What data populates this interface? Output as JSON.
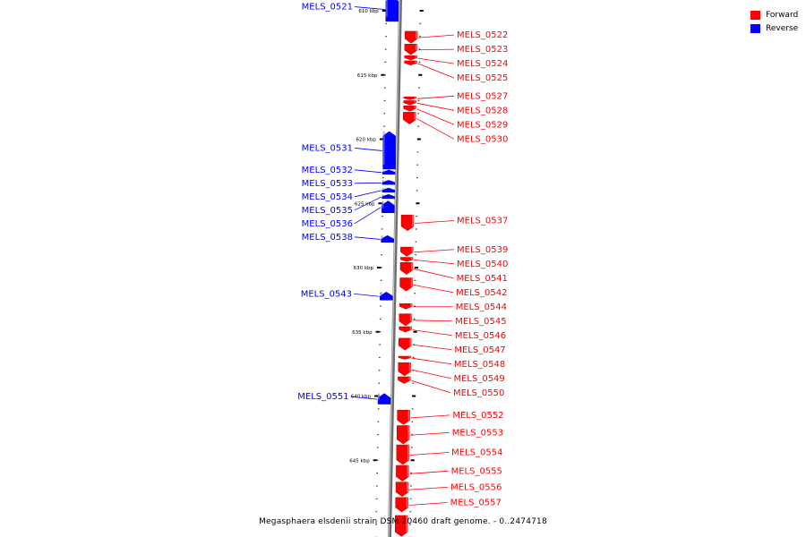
{
  "colors": {
    "forward": "#ff0000",
    "reverse": "#0000ff",
    "backbone": "#888888"
  },
  "legend": [
    {
      "label": "Forward",
      "color": "#ff0000"
    },
    {
      "label": "Reverse",
      "color": "#0000ff"
    }
  ],
  "caption": "Megasphaera elsdenii strain DSM 20460 draft genome. - 0..2474718",
  "ticks": [
    {
      "kbp": 610,
      "label": "610 kbp"
    },
    {
      "kbp": 615,
      "label": "615 kbp"
    },
    {
      "kbp": 620,
      "label": "620 kbp"
    },
    {
      "kbp": 625,
      "label": "625 kbp"
    },
    {
      "kbp": 630,
      "label": "630 kbp"
    },
    {
      "kbp": 635,
      "label": "635 kbp"
    },
    {
      "kbp": 640,
      "label": "640 kbp"
    },
    {
      "kbp": 645,
      "label": "645 kbp"
    }
  ],
  "genes": [
    {
      "name": "MELS_0521",
      "strand": "reverse",
      "start_kbp": 608.9,
      "end_kbp": 610.9
    },
    {
      "name": "MELS_0522",
      "strand": "forward",
      "start_kbp": 611.6,
      "end_kbp": 612.6
    },
    {
      "name": "MELS_0523",
      "strand": "forward",
      "start_kbp": 612.6,
      "end_kbp": 613.5
    },
    {
      "name": "MELS_0524",
      "strand": "forward",
      "start_kbp": 613.5,
      "end_kbp": 613.9
    },
    {
      "name": "MELS_0525",
      "strand": "forward",
      "start_kbp": 613.9,
      "end_kbp": 614.3
    },
    {
      "name": "MELS_0527",
      "strand": "forward",
      "start_kbp": 616.7,
      "end_kbp": 617.0
    },
    {
      "name": "MELS_0528",
      "strand": "forward",
      "start_kbp": 617.0,
      "end_kbp": 617.4
    },
    {
      "name": "MELS_0529",
      "strand": "forward",
      "start_kbp": 617.4,
      "end_kbp": 617.9
    },
    {
      "name": "MELS_0530",
      "strand": "forward",
      "start_kbp": 617.9,
      "end_kbp": 618.9
    },
    {
      "name": "MELS_0531",
      "strand": "reverse",
      "start_kbp": 619.4,
      "end_kbp": 622.4
    },
    {
      "name": "MELS_0532",
      "strand": "reverse",
      "start_kbp": 622.4,
      "end_kbp": 622.8
    },
    {
      "name": "MELS_0533",
      "strand": "reverse",
      "start_kbp": 623.2,
      "end_kbp": 623.6
    },
    {
      "name": "MELS_0534",
      "strand": "reverse",
      "start_kbp": 623.8,
      "end_kbp": 624.2
    },
    {
      "name": "MELS_0535",
      "strand": "reverse",
      "start_kbp": 624.3,
      "end_kbp": 624.7
    },
    {
      "name": "MELS_0536",
      "strand": "reverse",
      "start_kbp": 624.8,
      "end_kbp": 625.8
    },
    {
      "name": "MELS_0537",
      "strand": "forward",
      "start_kbp": 625.9,
      "end_kbp": 627.2
    },
    {
      "name": "MELS_0538",
      "strand": "reverse",
      "start_kbp": 627.5,
      "end_kbp": 628.1
    },
    {
      "name": "MELS_0539",
      "strand": "forward",
      "start_kbp": 628.4,
      "end_kbp": 629.2
    },
    {
      "name": "MELS_0540",
      "strand": "forward",
      "start_kbp": 629.2,
      "end_kbp": 629.6
    },
    {
      "name": "MELS_0541",
      "strand": "forward",
      "start_kbp": 629.6,
      "end_kbp": 630.6
    },
    {
      "name": "MELS_0542",
      "strand": "forward",
      "start_kbp": 630.8,
      "end_kbp": 631.9
    },
    {
      "name": "MELS_0543",
      "strand": "reverse",
      "start_kbp": 631.9,
      "end_kbp": 632.6
    },
    {
      "name": "MELS_0544",
      "strand": "forward",
      "start_kbp": 632.8,
      "end_kbp": 633.3
    },
    {
      "name": "MELS_0545",
      "strand": "forward",
      "start_kbp": 633.6,
      "end_kbp": 634.6
    },
    {
      "name": "MELS_0546",
      "strand": "forward",
      "start_kbp": 634.6,
      "end_kbp": 635.1
    },
    {
      "name": "MELS_0547",
      "strand": "forward",
      "start_kbp": 635.5,
      "end_kbp": 636.5
    },
    {
      "name": "MELS_0548",
      "strand": "forward",
      "start_kbp": 636.9,
      "end_kbp": 637.2
    },
    {
      "name": "MELS_0549",
      "strand": "forward",
      "start_kbp": 637.4,
      "end_kbp": 638.5
    },
    {
      "name": "MELS_0550",
      "strand": "forward",
      "start_kbp": 638.5,
      "end_kbp": 639.1
    },
    {
      "name": "MELS_0551",
      "strand": "reverse",
      "start_kbp": 639.8,
      "end_kbp": 640.7
    },
    {
      "name": "MELS_0552",
      "strand": "forward",
      "start_kbp": 641.1,
      "end_kbp": 642.3
    },
    {
      "name": "MELS_0553",
      "strand": "forward",
      "start_kbp": 642.3,
      "end_kbp": 643.8
    },
    {
      "name": "MELS_0554",
      "strand": "forward",
      "start_kbp": 643.8,
      "end_kbp": 645.4
    },
    {
      "name": "MELS_0555",
      "strand": "forward",
      "start_kbp": 645.4,
      "end_kbp": 646.7
    },
    {
      "name": "MELS_0556",
      "strand": "forward",
      "start_kbp": 646.7,
      "end_kbp": 647.9
    },
    {
      "name": "MELS_0557",
      "strand": "forward",
      "start_kbp": 647.9,
      "end_kbp": 649.1
    },
    {
      "name": "",
      "strand": "forward",
      "start_kbp": 649.3,
      "end_kbp": 651.0
    },
    {
      "name": "",
      "strand": "reverse",
      "start_kbp": 651.2,
      "end_kbp": 651.6
    }
  ]
}
